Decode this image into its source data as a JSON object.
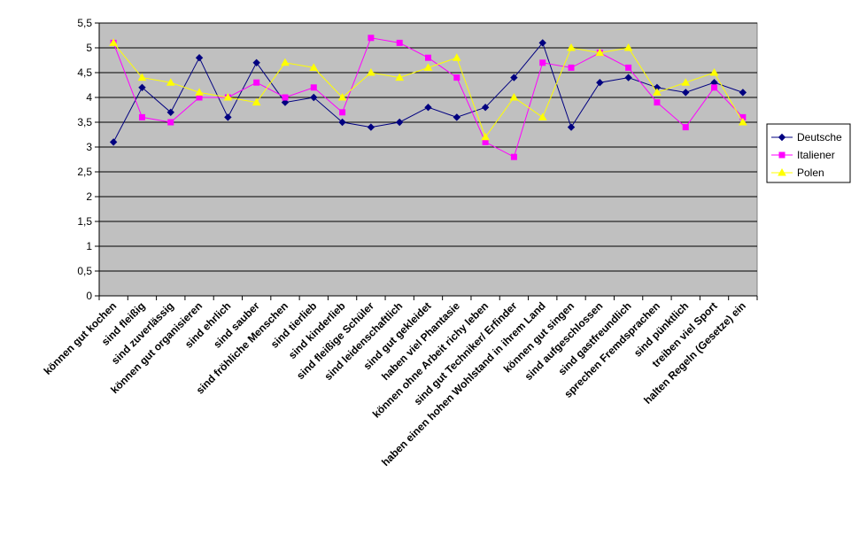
{
  "chart_data": {
    "type": "line",
    "categories": [
      "können gut kochen",
      "sind fleißig",
      "sind zuverlässig",
      "können gut organisieren",
      "sind ehrlich",
      "sind sauber",
      "sind fröhliche Menschen",
      "sind tierlieb",
      "sind kinderlieb",
      "sind fleißige Schüler",
      "sind leidenschaftlich",
      "sind gut gekleidet",
      "haben viel Phantasie",
      "können ohne Arbeit richy leben",
      "sind gut Techniker/ Erfinder",
      "haben einen hohen Wohlstand in ihrem Land",
      "können gut singen",
      "sind aufgeschlossen",
      "sind gastfreundlich",
      "sprechen Fremdsprachen",
      "sind pünktlich",
      "treiben viel Sport",
      "halten Regeln (Gesetze) ein"
    ],
    "series": [
      {
        "name": "Deutsche",
        "color": "#000080",
        "marker": "diamond",
        "values": [
          3.1,
          4.2,
          3.7,
          4.8,
          3.6,
          4.7,
          3.9,
          4.0,
          3.5,
          3.4,
          3.5,
          3.8,
          3.6,
          3.8,
          4.4,
          5.1,
          3.4,
          4.3,
          4.4,
          4.2,
          4.1,
          4.3,
          4.1
        ]
      },
      {
        "name": "Italiener",
        "color": "#ff00ff",
        "marker": "square",
        "values": [
          5.1,
          3.6,
          3.5,
          4.0,
          4.0,
          4.3,
          4.0,
          4.2,
          3.7,
          5.2,
          5.1,
          4.8,
          4.4,
          3.1,
          2.8,
          4.7,
          4.6,
          4.9,
          4.6,
          3.9,
          3.4,
          4.2,
          3.6
        ]
      },
      {
        "name": "Polen",
        "color": "#ffff00",
        "marker": "triangle",
        "values": [
          5.1,
          4.4,
          4.3,
          4.1,
          4.0,
          3.9,
          4.7,
          4.6,
          4.0,
          4.5,
          4.4,
          4.6,
          4.8,
          3.2,
          4.0,
          3.6,
          5.0,
          4.9,
          5.0,
          4.1,
          4.3,
          4.5,
          3.5
        ]
      }
    ],
    "ylim": [
      0,
      5.5
    ],
    "yticks": [
      "0",
      "0,5",
      "1",
      "1,5",
      "2",
      "2,5",
      "3",
      "3,5",
      "4",
      "4,5",
      "5",
      "5,5"
    ],
    "grid": true,
    "plot_background": "#c0c0c0",
    "legend_position": "right"
  }
}
